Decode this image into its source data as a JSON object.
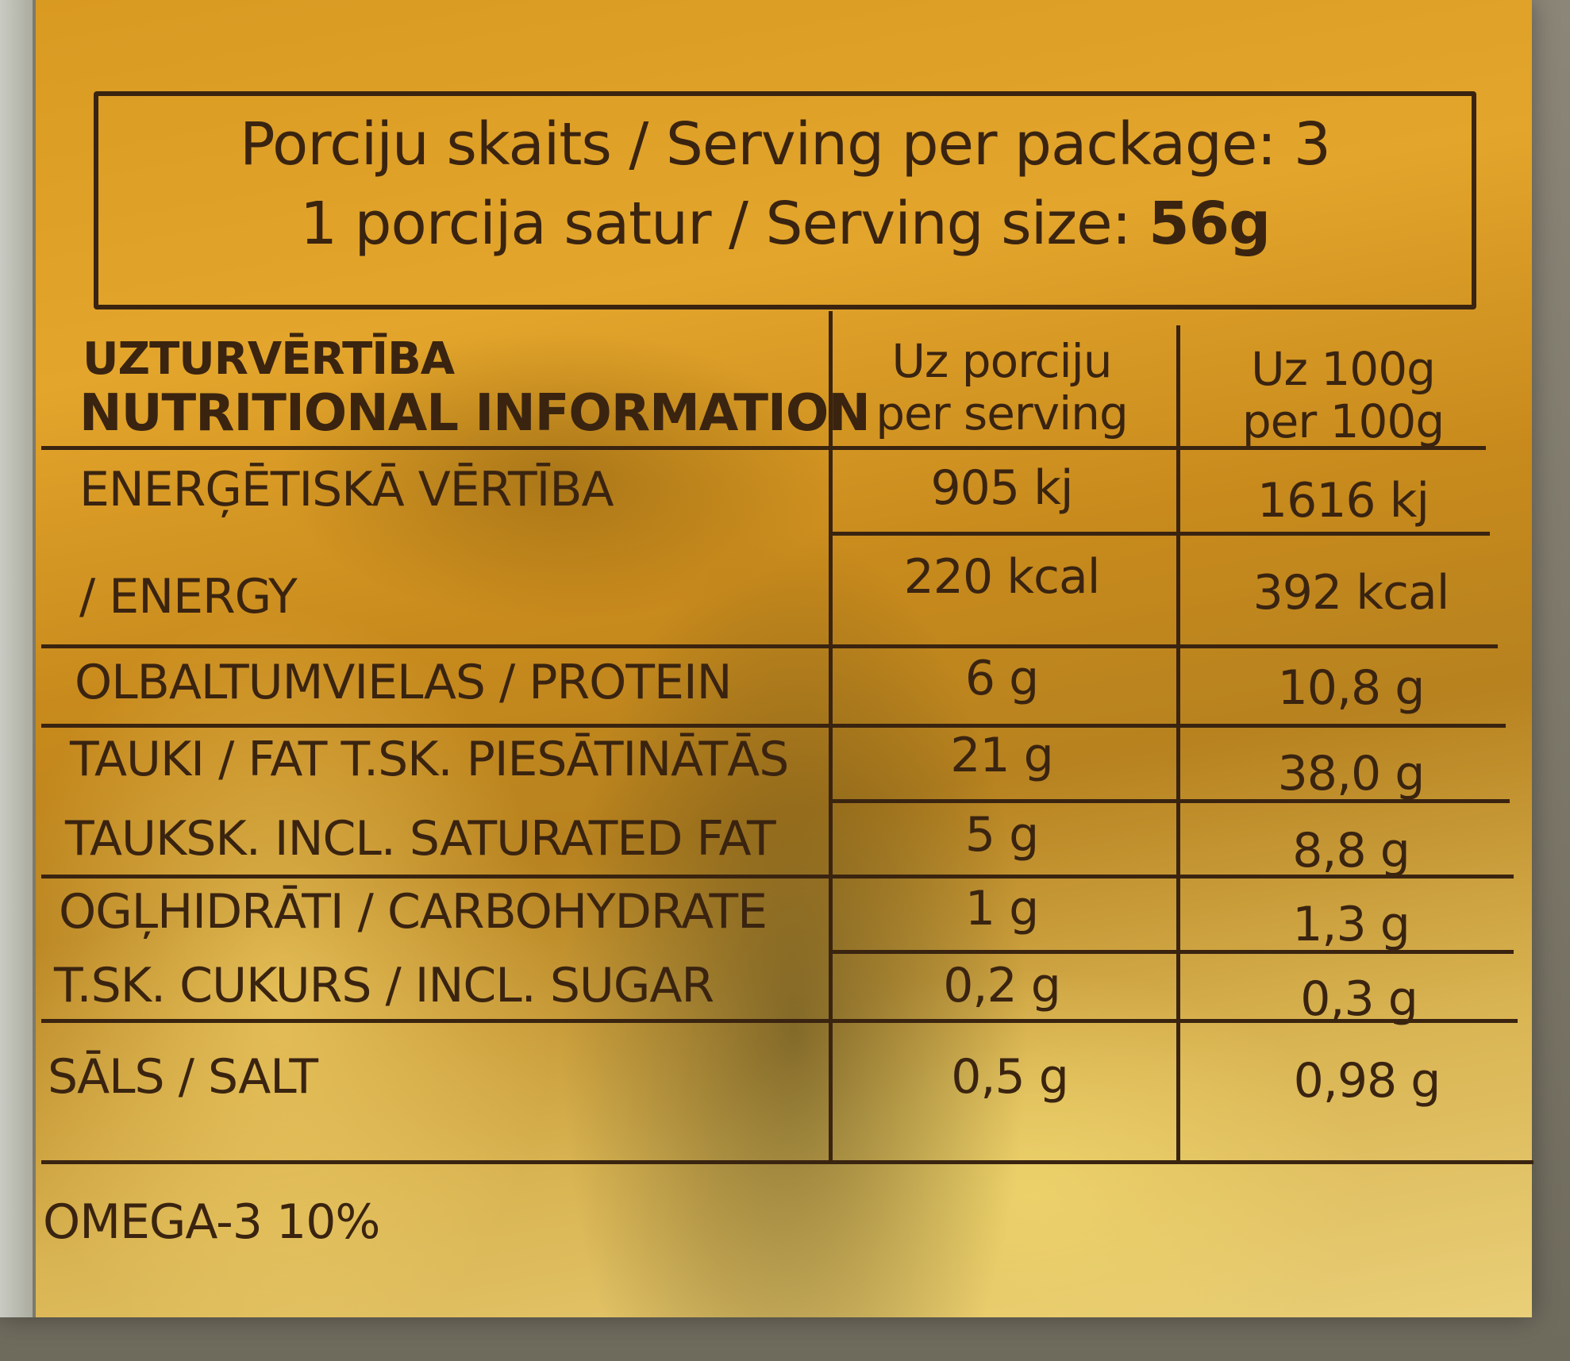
{
  "serving": {
    "line1": "Porciju skaits / Serving per package: 3",
    "line2_prefix": "1 porcija satur / Serving size: ",
    "line2_value": "56g"
  },
  "table": {
    "header": {
      "title_lv": "UZTURVĒRTĪBA",
      "title_en": "NUTRITIONAL INFORMATION",
      "col1_lv": "Uz porciju",
      "col1_en": "per serving",
      "col2_lv": "Uz 100g",
      "col2_en": "per 100g"
    },
    "rows": [
      {
        "label": "ENERĢĒTISKĀ VĒRTĪBA",
        "per_serving": "905 kj",
        "per_100g": "1616 kj"
      },
      {
        "label": "/ ENERGY",
        "per_serving": "220 kcal",
        "per_100g": "392 kcal"
      },
      {
        "label": "OLBALTUMVIELAS / PROTEIN",
        "per_serving": "6 g",
        "per_100g": "10,8 g"
      },
      {
        "label": "TAUKI / FAT  T.SK. PIESĀTINĀTĀS",
        "per_serving": "21 g",
        "per_100g": "38,0 g"
      },
      {
        "label": "TAUKSK. INCL. SATURATED FAT",
        "per_serving": "5 g",
        "per_100g": "8,8 g"
      },
      {
        "label": "OGĻHIDRĀTI /  CARBOHYDRATE",
        "per_serving": "1 g",
        "per_100g": "1,3 g"
      },
      {
        "label": "T.SK. CUKURS / INCL. SUGAR",
        "per_serving": "0,2 g",
        "per_100g": "0,3 g"
      },
      {
        "label": "SĀLS / SALT",
        "per_serving": "0,5 g",
        "per_100g": "0,98 g"
      }
    ]
  },
  "footer": {
    "omega": "OMEGA-3  10%"
  }
}
